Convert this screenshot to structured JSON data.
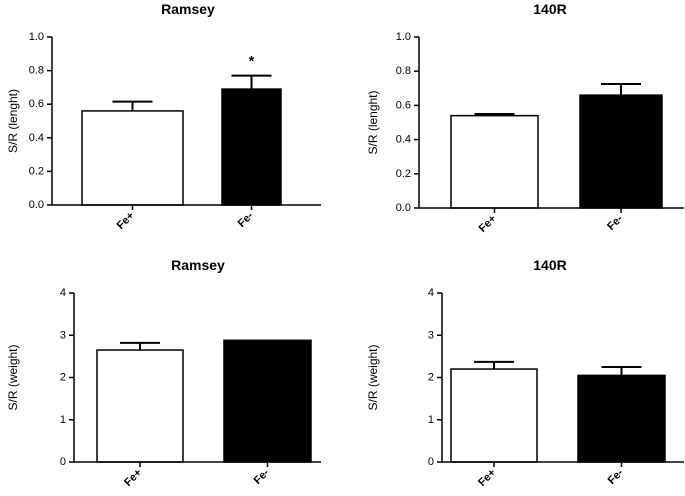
{
  "chart_data": [
    {
      "type": "bar",
      "title": "Ramsey",
      "ylabel": "S/R (lenght)",
      "xlabel": "",
      "categories": [
        "Fe+",
        "Fe-"
      ],
      "values": [
        0.56,
        0.69
      ],
      "errors": [
        0.055,
        0.08
      ],
      "fills": [
        "#ffffff",
        "#000000"
      ],
      "annotations": [
        "",
        "*"
      ],
      "ylim": [
        0,
        1.0
      ],
      "yticks": [
        "0.0",
        "0.2",
        "0.4",
        "0.6",
        "0.8",
        "1.0"
      ]
    },
    {
      "type": "bar",
      "title": "140R",
      "ylabel": "S/R (lenght)",
      "xlabel": "",
      "categories": [
        "Fe+",
        "Fe-"
      ],
      "values": [
        0.54,
        0.66
      ],
      "errors": [
        0.01,
        0.065
      ],
      "fills": [
        "#ffffff",
        "#000000"
      ],
      "annotations": [
        "",
        ""
      ],
      "ylim": [
        0,
        1.0
      ],
      "yticks": [
        "0.0",
        "0.2",
        "0.4",
        "0.6",
        "0.8",
        "1.0"
      ]
    },
    {
      "type": "bar",
      "title": "Ramsey",
      "ylabel": "S/R (weight)",
      "xlabel": "",
      "categories": [
        "Fe+",
        "Fe-"
      ],
      "values": [
        2.65,
        2.88
      ],
      "errors": [
        0.17,
        0.0
      ],
      "fills": [
        "#ffffff",
        "#000000"
      ],
      "annotations": [
        "",
        ""
      ],
      "ylim": [
        0,
        4
      ],
      "yticks": [
        "0",
        "1",
        "2",
        "3",
        "4"
      ]
    },
    {
      "type": "bar",
      "title": "140R",
      "ylabel": "S/R (weight)",
      "xlabel": "",
      "categories": [
        "Fe+",
        "Fe-"
      ],
      "values": [
        2.2,
        2.05
      ],
      "errors": [
        0.17,
        0.2
      ],
      "fills": [
        "#ffffff",
        "#000000"
      ],
      "annotations": [
        "",
        ""
      ],
      "ylim": [
        0,
        4
      ],
      "yticks": [
        "0",
        "1",
        "2",
        "3",
        "4"
      ]
    }
  ]
}
